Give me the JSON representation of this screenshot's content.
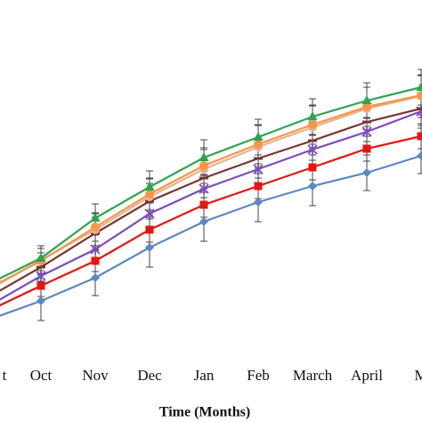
{
  "chart_data": {
    "type": "line",
    "x_label": "Time (Months)",
    "categories": [
      "t",
      "Oct",
      "Nov",
      "Dec",
      "Jan",
      "Feb",
      "March",
      "April",
      "M"
    ],
    "ylim": [
      0,
      400
    ],
    "series": [
      {
        "color": "#5b87c5",
        "marker": "diamond",
        "values": [
          40,
          62,
          88,
          122,
          151,
          173,
          191,
          206,
          225
        ],
        "errors": [
          15,
          22,
          20,
          22,
          22,
          22,
          22,
          20,
          20
        ]
      },
      {
        "color": "#e8140f",
        "marker": "square",
        "values": [
          50,
          79,
          107,
          142,
          170,
          191,
          212,
          233,
          247
        ],
        "errors": [
          10,
          12,
          12,
          14,
          14,
          14,
          14,
          14,
          14
        ]
      },
      {
        "color": "#7b4bc0",
        "marker": "x",
        "values": [
          55,
          90,
          120,
          160,
          188,
          210,
          232,
          252,
          275
        ],
        "errors": [
          10,
          14,
          16,
          16,
          16,
          16,
          16,
          16,
          16
        ]
      },
      {
        "color": "#7a3434",
        "marker": "dash",
        "values": [
          65,
          100,
          138,
          174,
          200,
          222,
          242,
          263,
          278
        ],
        "errors": [
          10,
          16,
          18,
          20,
          22,
          22,
          22,
          22,
          22
        ]
      },
      {
        "color": "#e6b48f",
        "marker": "circle",
        "values": [
          73,
          108,
          142,
          179,
          210,
          235,
          257,
          278,
          292
        ],
        "errors": [
          10,
          16,
          18,
          20,
          22,
          24,
          24,
          24,
          24
        ]
      },
      {
        "color": "#f79646",
        "marker": "circle",
        "values": [
          75,
          107,
          145,
          182,
          214,
          238,
          260,
          280,
          293
        ],
        "errors": [
          10,
          14,
          16,
          18,
          20,
          22,
          22,
          22,
          22
        ]
      },
      {
        "color": "#2ea44f",
        "marker": "triangle",
        "values": [
          80,
          110,
          155,
          190,
          223,
          246,
          269,
          287,
          302
        ],
        "errors": [
          10,
          14,
          16,
          18,
          20,
          20,
          20,
          20,
          20
        ]
      }
    ]
  }
}
